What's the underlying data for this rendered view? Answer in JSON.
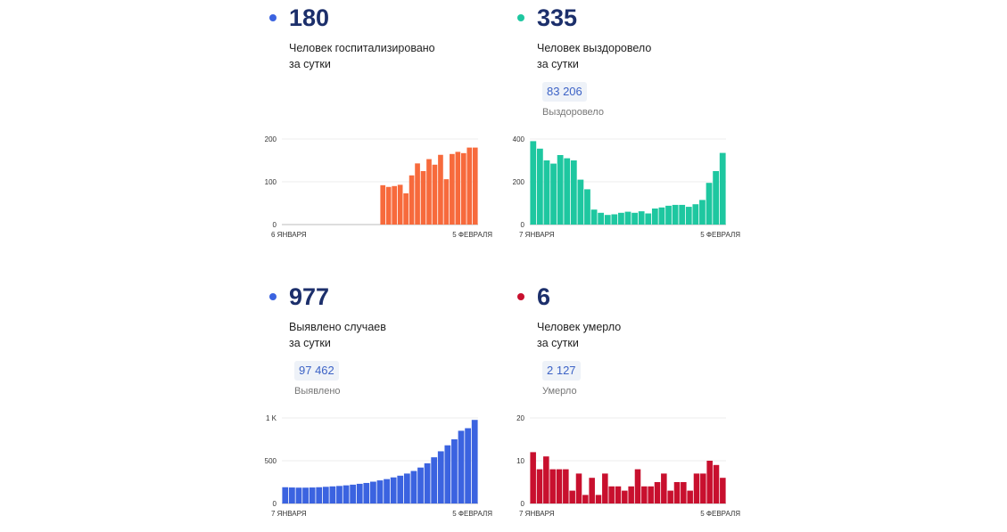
{
  "cards": [
    {
      "value": "180",
      "label_line1": "Человек госпитализировано",
      "label_line2": "за сутки",
      "dot_color": "#3b63e0"
    },
    {
      "value": "335",
      "label_line1": "Человек выздоровело",
      "label_line2": "за сутки",
      "total_value": "83 206",
      "total_label": "Выздоровело",
      "dot_color": "#1ec7a0"
    },
    {
      "value": "977",
      "label_line1": "Выявлено случаев",
      "label_line2": "за сутки",
      "total_value": "97 462",
      "total_label": "Выявлено",
      "dot_color": "#3b63e0"
    },
    {
      "value": "6",
      "label_line1": "Человек умерло",
      "label_line2": "за сутки",
      "total_value": "2 127",
      "total_label": "Умерло",
      "dot_color": "#c8102e"
    }
  ],
  "chart_data": [
    {
      "type": "bar",
      "title": "Человек госпитализировано за сутки",
      "color": "#f76a3c",
      "x_start_label": "6 ЯНВАРЯ",
      "x_end_label": "5 ФЕВРАЛЯ",
      "y_ticks": [
        "200",
        "100",
        "0"
      ],
      "ylim": [
        0,
        200
      ],
      "values": [
        0,
        0,
        0,
        0,
        0,
        0,
        0,
        0,
        0,
        0,
        0,
        0,
        0,
        0,
        0,
        0,
        0,
        92,
        88,
        90,
        93,
        73,
        115,
        143,
        125,
        153,
        140,
        163,
        106,
        165,
        170,
        167,
        180,
        180
      ]
    },
    {
      "type": "bar",
      "title": "Человек выздоровело за сутки",
      "color": "#1ec7a0",
      "x_start_label": "7 ЯНВАРЯ",
      "x_end_label": "5 ФЕВРАЛЯ",
      "y_ticks": [
        "400",
        "200",
        "0"
      ],
      "ylim": [
        0,
        400
      ],
      "values": [
        390,
        355,
        300,
        285,
        325,
        310,
        300,
        210,
        165,
        70,
        55,
        45,
        48,
        55,
        60,
        55,
        62,
        52,
        75,
        80,
        88,
        92,
        92,
        83,
        95,
        115,
        195,
        250,
        335
      ]
    },
    {
      "type": "bar",
      "title": "Выявлено случаев за сутки",
      "color": "#3b63e0",
      "x_start_label": "7 ЯНВАРЯ",
      "x_end_label": "5 ФЕВРАЛЯ",
      "y_ticks": [
        "1 K",
        "500",
        "0"
      ],
      "ylim": [
        0,
        1000
      ],
      "values": [
        190,
        187,
        185,
        185,
        187,
        190,
        195,
        200,
        205,
        212,
        220,
        230,
        240,
        255,
        270,
        285,
        305,
        325,
        350,
        380,
        420,
        470,
        540,
        610,
        680,
        750,
        850,
        880,
        977
      ]
    },
    {
      "type": "bar",
      "title": "Человек умерло за сутки",
      "color": "#c8102e",
      "x_start_label": "7 ЯНВАРЯ",
      "x_end_label": "5 ФЕВРАЛЯ",
      "y_ticks": [
        "20",
        "10",
        "0"
      ],
      "ylim": [
        0,
        20
      ],
      "values": [
        12,
        8,
        11,
        8,
        8,
        8,
        3,
        7,
        2,
        6,
        2,
        7,
        4,
        4,
        3,
        4,
        8,
        4,
        4,
        5,
        7,
        3,
        5,
        5,
        3,
        7,
        7,
        10,
        9,
        6
      ]
    }
  ]
}
